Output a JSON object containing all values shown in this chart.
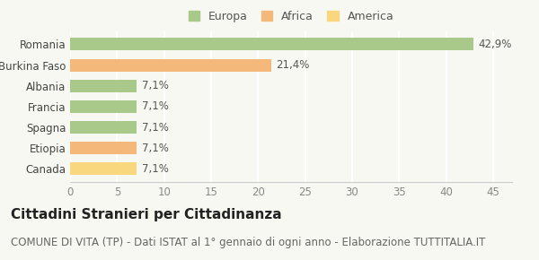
{
  "categories": [
    "Canada",
    "Etiopia",
    "Spagna",
    "Francia",
    "Albania",
    "Burkina Faso",
    "Romania"
  ],
  "values": [
    7.1,
    7.1,
    7.1,
    7.1,
    7.1,
    21.4,
    42.9
  ],
  "labels": [
    "7,1%",
    "7,1%",
    "7,1%",
    "7,1%",
    "7,1%",
    "21,4%",
    "42,9%"
  ],
  "colors": [
    "#f9d77e",
    "#f4b97a",
    "#a8c98a",
    "#a8c98a",
    "#a8c98a",
    "#f4b97a",
    "#a8c98a"
  ],
  "legend": [
    {
      "label": "Europa",
      "color": "#a8c98a"
    },
    {
      "label": "Africa",
      "color": "#f4b97a"
    },
    {
      "label": "America",
      "color": "#f9d77e"
    }
  ],
  "xlim": [
    0,
    47
  ],
  "xticks": [
    0,
    5,
    10,
    15,
    20,
    25,
    30,
    35,
    40,
    45
  ],
  "title": "Cittadini Stranieri per Cittadinanza",
  "subtitle": "COMUNE DI VITA (TP) - Dati ISTAT al 1° gennaio di ogni anno - Elaborazione TUTTITALIA.IT",
  "background_color": "#f8f8f2",
  "grid_color": "#ffffff",
  "bar_height": 0.6,
  "title_fontsize": 11,
  "subtitle_fontsize": 8.5,
  "label_fontsize": 8.5,
  "tick_fontsize": 8.5,
  "legend_fontsize": 9
}
